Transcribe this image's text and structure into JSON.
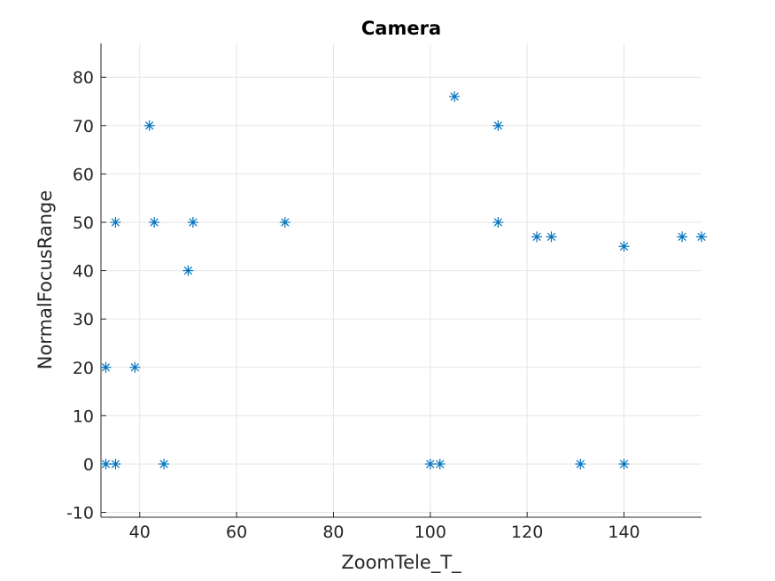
{
  "chart_data": {
    "type": "scatter",
    "title": "Camera",
    "xlabel": "ZoomTele_T_",
    "ylabel": "NormalFocusRange",
    "xlim": [
      32,
      156
    ],
    "ylim": [
      -11,
      87
    ],
    "xticks": [
      40,
      60,
      80,
      100,
      120,
      140
    ],
    "yticks": [
      -10,
      0,
      10,
      20,
      30,
      40,
      50,
      60,
      70,
      80
    ],
    "grid": true,
    "marker": "asterisk",
    "colors": {
      "marker": "#0072BD",
      "grid": "#E6E6E6",
      "axis": "#262626",
      "background": "#FFFFFF"
    },
    "series": [
      {
        "x": [
          33,
          33,
          35,
          35,
          39,
          42,
          43,
          45,
          50,
          51,
          70,
          100,
          102,
          105,
          114,
          114,
          122,
          125,
          131,
          140,
          140,
          152,
          156
        ],
        "y": [
          20,
          0,
          0,
          50,
          20,
          70,
          50,
          0,
          40,
          50,
          50,
          0,
          0,
          76,
          70,
          50,
          47,
          47,
          0,
          45,
          0,
          47,
          47
        ]
      }
    ]
  }
}
